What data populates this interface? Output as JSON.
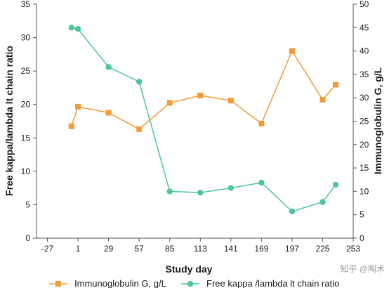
{
  "chart_data": {
    "type": "line",
    "xlabel": "Study day",
    "ylabel_left": "Free kappa/lambda lt chain ratio",
    "ylabel_right": "Immunoglobulin G, g/L",
    "x_ticks": [
      -27,
      1,
      29,
      57,
      85,
      113,
      141,
      169,
      197,
      225,
      253
    ],
    "xlim": [
      -37,
      253
    ],
    "y_left_ticks": [
      0,
      5,
      10,
      15,
      20,
      25,
      30,
      35
    ],
    "ylim_left": [
      0,
      35
    ],
    "y_right_ticks": [
      0,
      5,
      10,
      15,
      20,
      25,
      30,
      35,
      40,
      45,
      50
    ],
    "ylim_right": [
      0,
      50
    ],
    "grid": false,
    "legend_position": "bottom",
    "series": [
      {
        "name": "Immunoglobulin G, g/L",
        "axis": "right",
        "marker": "square",
        "color": "#f29a38",
        "x": [
          -5,
          1,
          29,
          57,
          85,
          113,
          141,
          169,
          197,
          225,
          237
        ],
        "y": [
          23.9,
          28.1,
          26.8,
          23.3,
          28.9,
          30.5,
          29.4,
          24.5,
          40,
          29.6,
          32.8
        ]
      },
      {
        "name": "Free kappa /lambda lt chain ratio",
        "axis": "left",
        "marker": "circle",
        "color": "#4dc4a0",
        "x": [
          -5,
          1,
          29,
          57,
          85,
          113,
          141,
          169,
          197,
          225,
          237
        ],
        "y": [
          31.5,
          31.3,
          25.6,
          23.4,
          7.0,
          6.8,
          7.5,
          8.3,
          4.0,
          5.4,
          8.0
        ]
      }
    ]
  },
  "watermark": "知乎 @陶术"
}
